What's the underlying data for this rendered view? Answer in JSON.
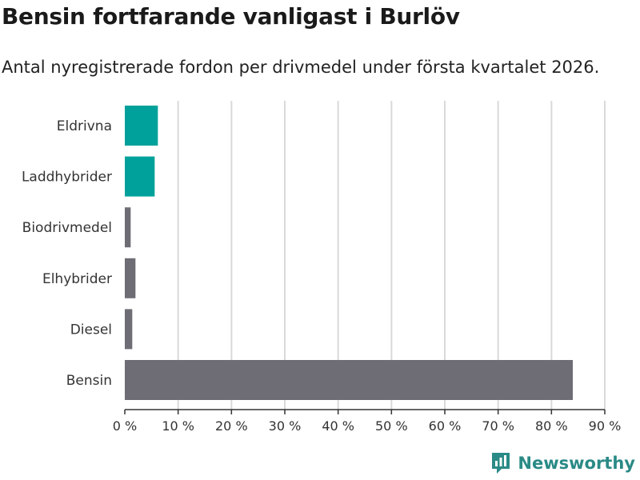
{
  "title": "Bensin fortfarande vanligast i Burlöv",
  "subtitle": "Antal nyregistrerade fordon per drivmedel under första kvartalet 2026.",
  "brand": {
    "name": "Newsworthy",
    "logo_icon": "newsworthy-logo-icon"
  },
  "colors": {
    "highlight": "#00a19a",
    "default": "#6e6d75",
    "grid": "#d9d9d9",
    "axis": "#333333"
  },
  "chart_data": {
    "type": "bar",
    "orientation": "horizontal",
    "categories": [
      "Eldrivna",
      "Laddhybrider",
      "Biodrivmedel",
      "Elhybrider",
      "Diesel",
      "Bensin"
    ],
    "values": [
      6.2,
      5.6,
      1.1,
      2.0,
      1.4,
      84.0
    ],
    "highlighted": [
      "Eldrivna",
      "Laddhybrider"
    ],
    "xlim": [
      0,
      90
    ],
    "xticks": [
      0,
      10,
      20,
      30,
      40,
      50,
      60,
      70,
      80,
      90
    ],
    "xtick_labels": [
      "0 %",
      "10 %",
      "20 %",
      "30 %",
      "40 %",
      "50 %",
      "60 %",
      "70 %",
      "80 %",
      "90 %"
    ],
    "grid": "vertical",
    "legend": "none"
  }
}
